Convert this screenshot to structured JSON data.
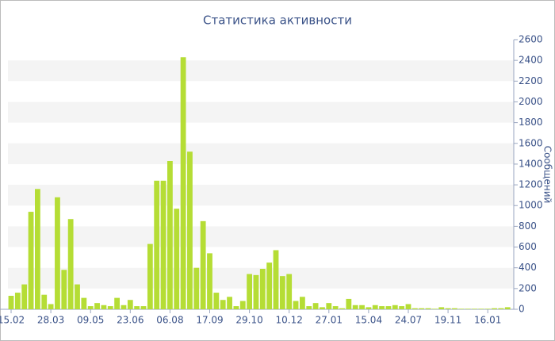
{
  "chart_data": {
    "type": "bar",
    "title": "Статистика активности",
    "y_label": "Сообщений",
    "categories": [
      "15.02",
      null,
      null,
      null,
      null,
      null,
      "28.03",
      null,
      null,
      null,
      null,
      null,
      "09.05",
      null,
      null,
      null,
      null,
      null,
      "23.06",
      null,
      null,
      null,
      null,
      null,
      "06.08",
      null,
      null,
      null,
      null,
      null,
      "17.09",
      null,
      null,
      null,
      null,
      null,
      "29.10",
      null,
      null,
      null,
      null,
      null,
      "10.12",
      null,
      null,
      null,
      null,
      null,
      "27.01",
      null,
      null,
      null,
      null,
      null,
      "15.04",
      null,
      null,
      null,
      null,
      null,
      "24.07",
      null,
      null,
      null,
      null,
      null,
      "19.11",
      null,
      null,
      null,
      null,
      null,
      "16.01",
      null,
      null,
      null
    ],
    "values": [
      130,
      160,
      240,
      940,
      1160,
      140,
      50,
      1080,
      380,
      870,
      240,
      110,
      30,
      60,
      40,
      30,
      110,
      40,
      90,
      30,
      30,
      630,
      1240,
      1240,
      1430,
      970,
      2430,
      1520,
      400,
      850,
      540,
      160,
      90,
      120,
      30,
      80,
      340,
      330,
      390,
      450,
      570,
      320,
      340,
      80,
      120,
      30,
      60,
      20,
      60,
      30,
      10,
      100,
      40,
      40,
      20,
      40,
      30,
      30,
      40,
      30,
      50,
      10,
      10,
      10,
      5,
      20,
      10,
      10,
      5,
      5,
      5,
      5,
      5,
      10,
      10,
      20
    ],
    "color": "#b5dd35",
    "ylim": [
      0,
      2600
    ],
    "yticks": [
      0,
      200,
      400,
      600,
      800,
      1000,
      1200,
      1400,
      1600,
      1800,
      2000,
      2200,
      2400,
      2600
    ],
    "grid": true
  }
}
